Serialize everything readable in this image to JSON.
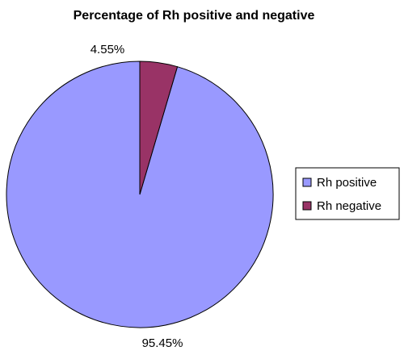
{
  "chart_data": {
    "type": "pie",
    "title": "Percentage of Rh positive and negative",
    "categories": [
      "Rh positive",
      "Rh negative"
    ],
    "values": [
      95.45,
      4.55
    ],
    "data_labels": [
      "95.45%",
      "4.55%"
    ],
    "colors": [
      "#9999FF",
      "#993366"
    ],
    "legend": {
      "position": "right",
      "entries": [
        "Rh positive",
        "Rh negative"
      ]
    }
  }
}
